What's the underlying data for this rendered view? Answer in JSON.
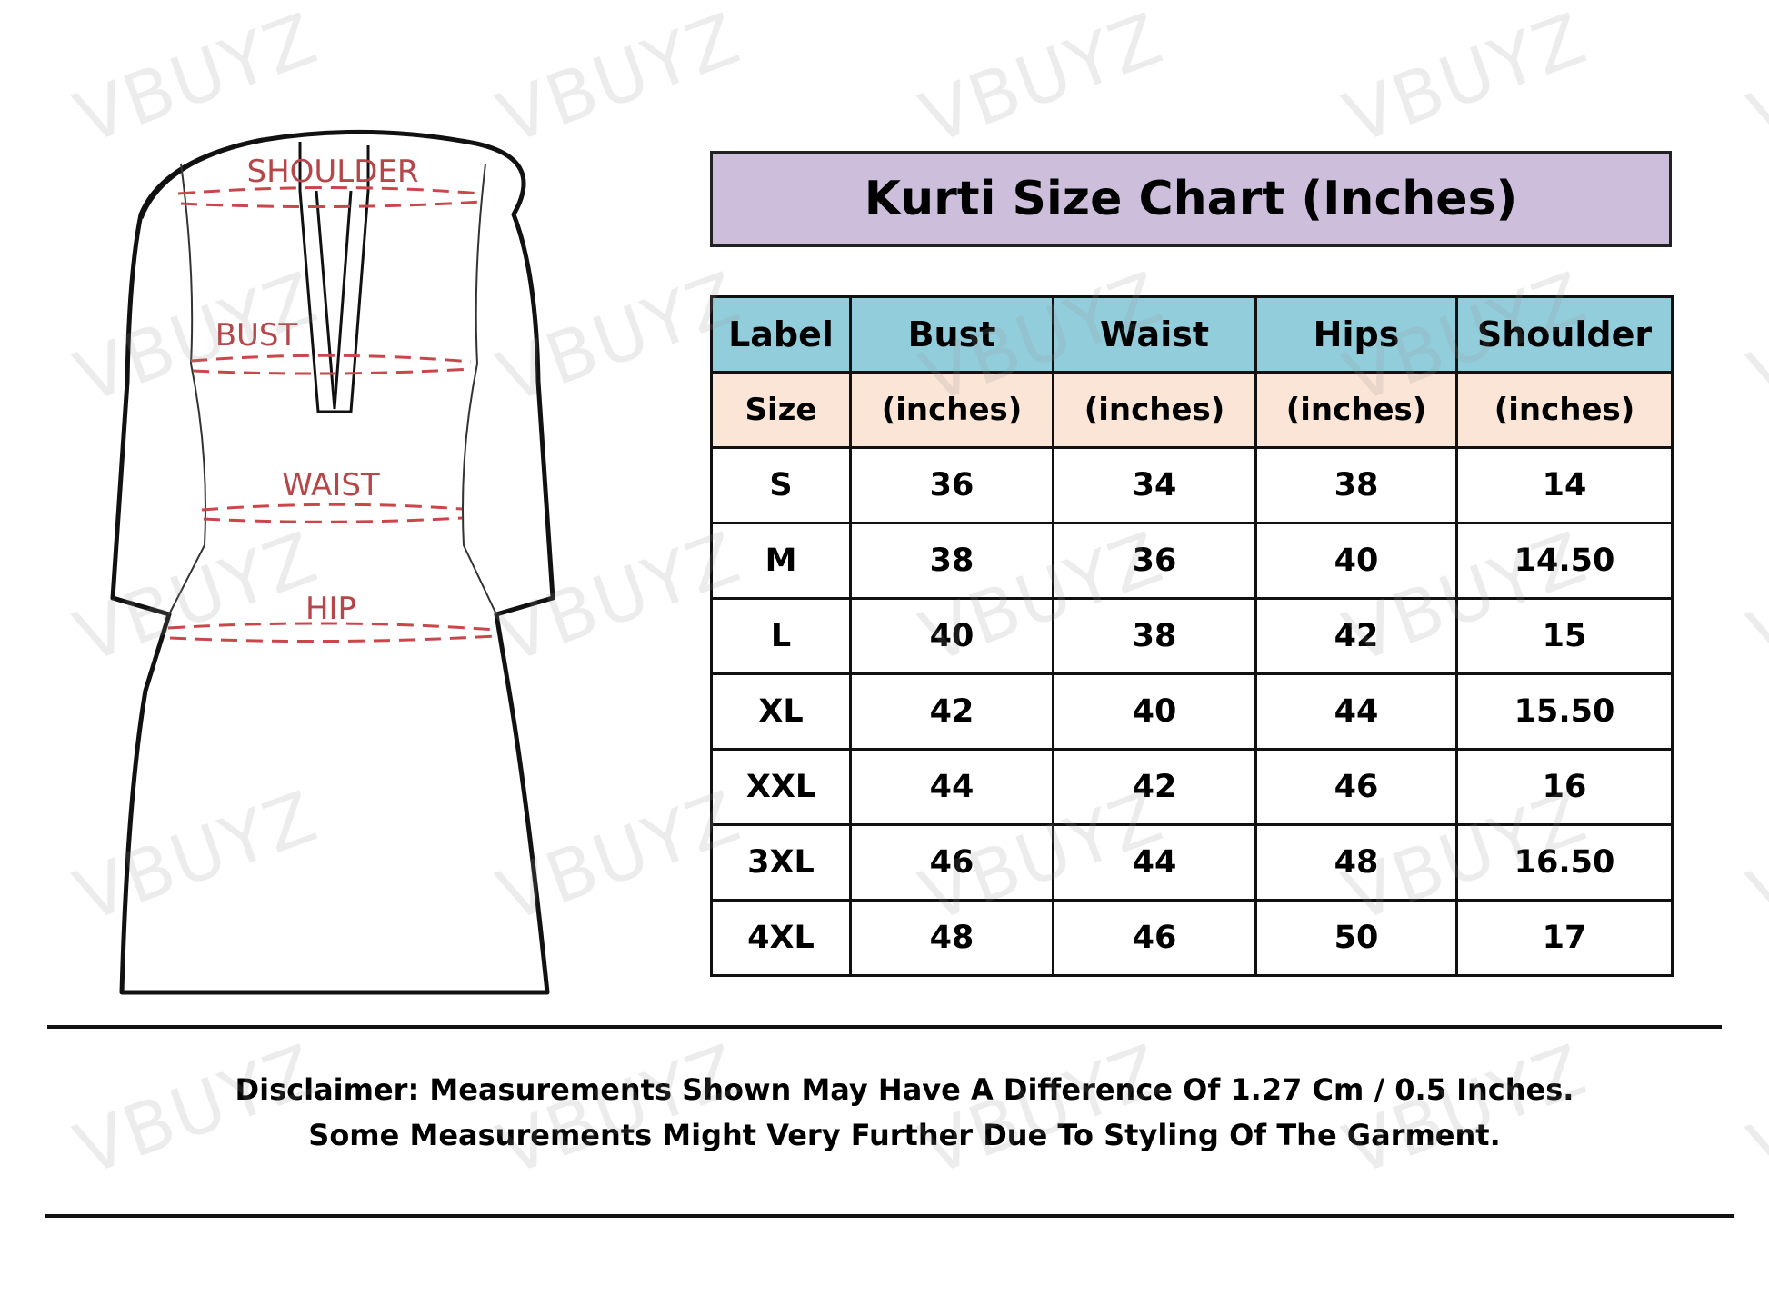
{
  "watermark": "VBUYZ",
  "diagram": {
    "labels": {
      "shoulder": "SHOULDER",
      "bust": "BUST",
      "waist": "WAIST",
      "hip": "HIP"
    },
    "measure_color": "#b5474a"
  },
  "title": "Kurti Size Chart (Inches)",
  "colors": {
    "title_bg": "#cdbfdc",
    "header_bg": "#92cddc",
    "subheader_bg": "#fbe5d6"
  },
  "table": {
    "headers": [
      "Label",
      "Bust",
      "Waist",
      "Hips",
      "Shoulder"
    ],
    "subheaders": [
      "Size",
      "(inches)",
      "(inches)",
      "(inches)",
      "(inches)"
    ],
    "rows": [
      [
        "S",
        "36",
        "34",
        "38",
        "14"
      ],
      [
        "M",
        "38",
        "36",
        "40",
        "14.50"
      ],
      [
        "L",
        "40",
        "38",
        "42",
        "15"
      ],
      [
        "XL",
        "42",
        "40",
        "44",
        "15.50"
      ],
      [
        "XXL",
        "44",
        "42",
        "46",
        "16"
      ],
      [
        "3XL",
        "46",
        "44",
        "48",
        "16.50"
      ],
      [
        "4XL",
        "48",
        "46",
        "50",
        "17"
      ]
    ]
  },
  "disclaimer": {
    "line1": "Disclaimer: Measurements Shown May Have A Difference Of 1.27 Cm / 0.5 Inches.",
    "line2": "Some Measurements Might Very Further Due To Styling Of The Garment."
  }
}
